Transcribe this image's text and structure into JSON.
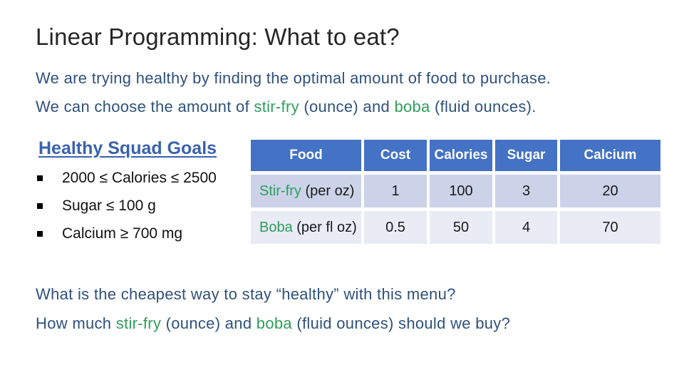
{
  "colors": {
    "title_text": "#262626",
    "body_navy": "#2F517C",
    "highlight_green": "#2E9E5B",
    "goals_heading_blue": "#3A62AD",
    "table_header_blue": "#4472C4",
    "table_band_dark": "#CCD3E9",
    "table_band_light": "#E9EBF5"
  },
  "slide": {
    "title": "Linear Programming: What to eat?"
  },
  "intro": {
    "line1": "We are trying healthy by finding the optimal amount of food to purchase.",
    "line2": [
      "We can choose the amount of ",
      "stir-fry",
      " (ounce) and ",
      "boba",
      " (fluid ounces)."
    ]
  },
  "goals": {
    "heading": "Healthy Squad Goals",
    "items": [
      "2000 ≤ Calories ≤ 2500",
      "Sugar ≤ 100 g",
      "Calcium ≥ 700 mg"
    ]
  },
  "table": {
    "headers": [
      "Food",
      "Cost",
      "Calories",
      "Sugar",
      "Calcium"
    ],
    "rows": [
      {
        "name": "Stir-fry",
        "name_note": " (per oz)",
        "cost": "1",
        "calories": "100",
        "sugar": "3",
        "calcium": "20"
      },
      {
        "name": "Boba",
        "name_note": " (per fl oz)",
        "cost": "0.5",
        "calories": "50",
        "sugar": "4",
        "calcium": "70"
      }
    ]
  },
  "questions": {
    "line1": "What is the cheapest way to stay “healthy” with this menu?",
    "line2": [
      "How much ",
      "stir-fry",
      " (ounce) and ",
      "boba",
      " (fluid ounces) should we buy?"
    ]
  }
}
